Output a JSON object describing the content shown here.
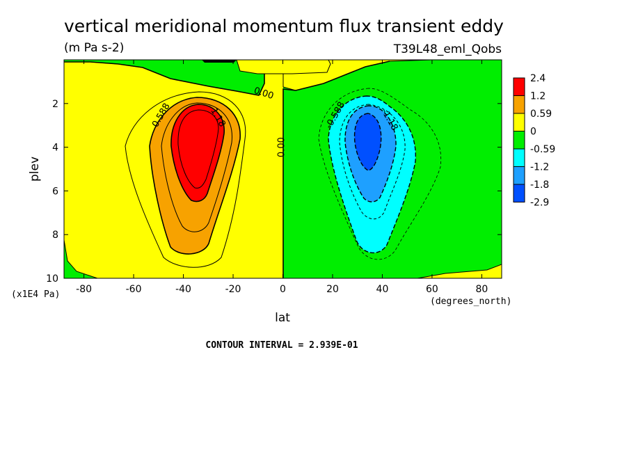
{
  "chart_data": {
    "type": "contour",
    "title": "vertical meridional momentum flux transient eddy",
    "units": "(m Pa s-2)",
    "experiment": "T39L48_eml_Qobs",
    "xlabel": "lat",
    "xunits": "(degrees_north)",
    "ylabel": "plev",
    "yunits": "(x1E4 Pa)",
    "xlim": [
      -88,
      88
    ],
    "ylim": [
      10,
      0
    ],
    "x_ticks": [
      {
        "value": -80,
        "label": "-80"
      },
      {
        "value": -60,
        "label": "-60"
      },
      {
        "value": -40,
        "label": "-40"
      },
      {
        "value": -20,
        "label": "-20"
      },
      {
        "value": 0,
        "label": "0"
      },
      {
        "value": 20,
        "label": "20"
      },
      {
        "value": 40,
        "label": "40"
      },
      {
        "value": 60,
        "label": "60"
      },
      {
        "value": 80,
        "label": "80"
      }
    ],
    "y_ticks": [
      {
        "value": 2,
        "label": "2"
      },
      {
        "value": 4,
        "label": "4"
      },
      {
        "value": 6,
        "label": "6"
      },
      {
        "value": 8,
        "label": "8"
      },
      {
        "value": 10,
        "label": "10"
      }
    ],
    "contour_interval": "CONTOUR INTERVAL = 2.939E-01",
    "contour_labels": [
      {
        "text": "0.00",
        "x": -8,
        "y": 1.65,
        "rotate": 18
      },
      {
        "text": "0.00",
        "x": 0.5,
        "y": 4.0,
        "rotate": -90
      },
      {
        "text": "0.588",
        "x": -48,
        "y": 2.6,
        "rotate": -60
      },
      {
        "text": "1.18",
        "x": -27,
        "y": 2.7,
        "rotate": 60
      },
      {
        "text": "-0.588",
        "x": 22,
        "y": 2.6,
        "rotate": -60
      },
      {
        "text": "-1.18",
        "x": 42,
        "y": 2.8,
        "rotate": 60
      }
    ],
    "colorbar": [
      {
        "label": "2.4",
        "color": "#ff0000"
      },
      {
        "label": "1.2",
        "color": "#f7a200"
      },
      {
        "label": "0.59",
        "color": "#ffff00"
      },
      {
        "label": "0",
        "color": "#00ee00"
      },
      {
        "label": "-0.59",
        "color": "#00ffff"
      },
      {
        "label": "-1.2",
        "color": "#1ea0ff"
      },
      {
        "label": "-1.8",
        "color": "#0050ff"
      },
      {
        "label": "-2.9",
        "color": null
      }
    ],
    "colors": {
      "red": "#ff0000",
      "orange": "#f7a200",
      "yellow": "#ffff00",
      "green": "#00ee00",
      "cyan": "#00ffff",
      "lightblue": "#1ea0ff",
      "blue": "#0050ff"
    }
  }
}
